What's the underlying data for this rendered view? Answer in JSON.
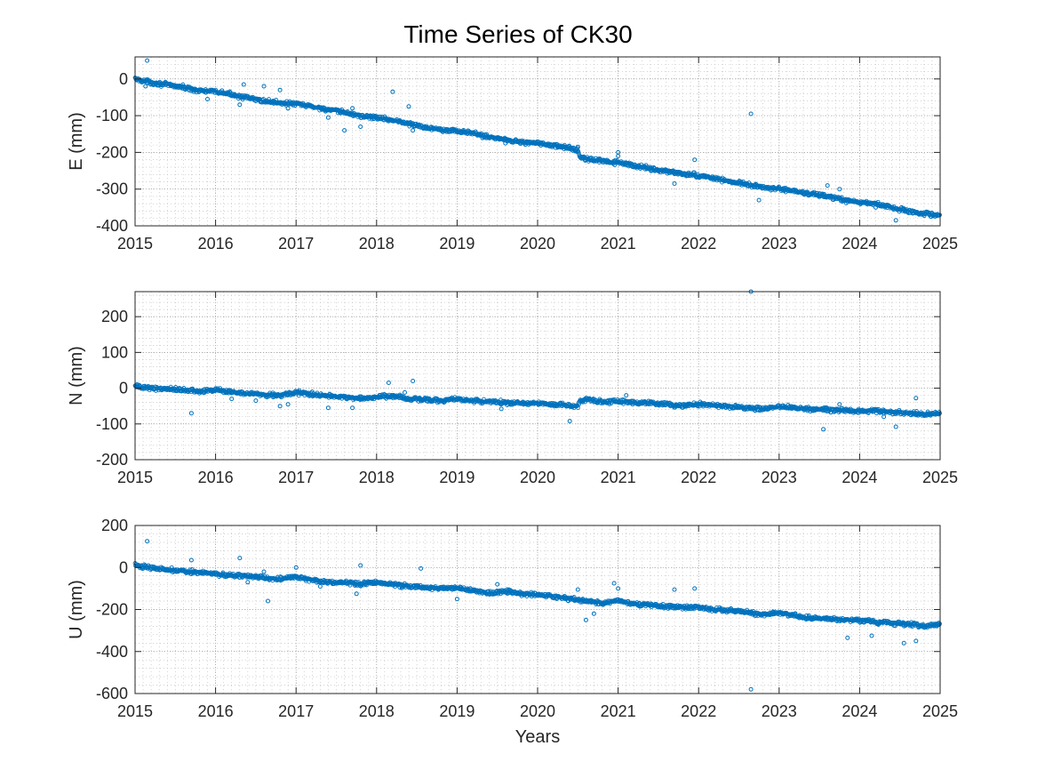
{
  "figure": {
    "title": "Time Series of CK30",
    "xlabel": "Years"
  },
  "colors": {
    "marker": "#0072BD",
    "grid": "#b8b8b8",
    "axis": "#262626",
    "background": "#ffffff"
  },
  "chart_data": [
    {
      "type": "scatter",
      "marker": "open-circle",
      "ylabel": "E (mm)",
      "xlim": [
        2015,
        2025
      ],
      "ylim": [
        -400,
        60
      ],
      "xticks": [
        2015,
        2016,
        2017,
        2018,
        2019,
        2020,
        2021,
        2022,
        2023,
        2024,
        2025
      ],
      "yticks": [
        -400,
        -300,
        -200,
        -100,
        0
      ],
      "grid": true,
      "minor_grid": true,
      "show_xtick_labels": true,
      "show_xlabel": false,
      "x": [
        2015.0,
        2015.2,
        2015.4,
        2015.6,
        2015.8,
        2016.0,
        2016.2,
        2016.4,
        2016.6,
        2016.8,
        2017.0,
        2017.2,
        2017.4,
        2017.6,
        2017.8,
        2018.0,
        2018.2,
        2018.4,
        2018.6,
        2018.8,
        2019.0,
        2019.2,
        2019.4,
        2019.6,
        2019.8,
        2020.0,
        2020.2,
        2020.4,
        2020.5,
        2020.52,
        2020.6,
        2020.8,
        2021.0,
        2021.2,
        2021.4,
        2021.6,
        2021.8,
        2022.0,
        2022.2,
        2022.4,
        2022.6,
        2022.8,
        2023.0,
        2023.2,
        2023.4,
        2023.6,
        2023.8,
        2024.0,
        2024.2,
        2024.4,
        2024.6,
        2024.8,
        2025.0
      ],
      "y": [
        0,
        -10,
        -16,
        -23,
        -32,
        -35,
        -42,
        -52,
        -60,
        -65,
        -68,
        -75,
        -84,
        -91,
        -101,
        -105,
        -112,
        -122,
        -132,
        -137,
        -142,
        -148,
        -158,
        -165,
        -172,
        -175,
        -182,
        -188,
        -195,
        -212,
        -218,
        -224,
        -228,
        -236,
        -244,
        -252,
        -258,
        -264,
        -270,
        -280,
        -288,
        -295,
        -300,
        -306,
        -313,
        -320,
        -330,
        -336,
        -340,
        -350,
        -360,
        -366,
        -372
      ],
      "outliers": {
        "x": [
          2015.15,
          2015.13,
          2015.9,
          2016.3,
          2016.35,
          2016.6,
          2016.8,
          2016.9,
          2017.4,
          2017.6,
          2017.7,
          2017.8,
          2018.2,
          2018.4,
          2018.45,
          2019.6,
          2020.5,
          2021.0,
          2021.0,
          2021.7,
          2021.95,
          2022.65,
          2022.75,
          2023.6,
          2023.75,
          2024.2,
          2024.45
        ],
        "y": [
          50,
          -20,
          -55,
          -70,
          -15,
          -20,
          -30,
          -80,
          -105,
          -140,
          -80,
          -130,
          -35,
          -75,
          -140,
          -175,
          -185,
          -200,
          -210,
          -285,
          -220,
          -95,
          -330,
          -290,
          -300,
          -350,
          -385
        ]
      }
    },
    {
      "type": "scatter",
      "marker": "open-circle",
      "ylabel": "N (mm)",
      "xlim": [
        2015,
        2025
      ],
      "ylim": [
        -200,
        270
      ],
      "xticks": [
        2015,
        2016,
        2017,
        2018,
        2019,
        2020,
        2021,
        2022,
        2023,
        2024,
        2025
      ],
      "yticks": [
        -200,
        -100,
        0,
        100,
        200
      ],
      "grid": true,
      "minor_grid": true,
      "show_xtick_labels": true,
      "show_xlabel": false,
      "x": [
        2015.0,
        2015.2,
        2015.4,
        2015.6,
        2015.8,
        2016.0,
        2016.2,
        2016.4,
        2016.6,
        2016.8,
        2017.0,
        2017.2,
        2017.4,
        2017.6,
        2017.8,
        2018.0,
        2018.2,
        2018.4,
        2018.6,
        2018.8,
        2019.0,
        2019.2,
        2019.4,
        2019.6,
        2019.8,
        2020.0,
        2020.2,
        2020.4,
        2020.5,
        2020.52,
        2020.6,
        2020.8,
        2021.0,
        2021.2,
        2021.4,
        2021.6,
        2021.8,
        2022.0,
        2022.2,
        2022.4,
        2022.6,
        2022.8,
        2023.0,
        2023.2,
        2023.4,
        2023.6,
        2023.8,
        2024.0,
        2024.2,
        2024.4,
        2024.6,
        2024.8,
        2025.0
      ],
      "y": [
        5,
        0,
        -2,
        -4,
        -10,
        -5,
        -10,
        -14,
        -18,
        -20,
        -12,
        -18,
        -22,
        -25,
        -28,
        -26,
        -22,
        -30,
        -32,
        -35,
        -30,
        -35,
        -38,
        -40,
        -42,
        -42,
        -45,
        -48,
        -50,
        -35,
        -32,
        -38,
        -36,
        -40,
        -42,
        -45,
        -50,
        -45,
        -48,
        -52,
        -55,
        -58,
        -52,
        -55,
        -60,
        -60,
        -62,
        -65,
        -62,
        -68,
        -70,
        -72,
        -72
      ],
      "outliers": {
        "x": [
          2015.7,
          2016.2,
          2016.5,
          2016.8,
          2016.9,
          2017.2,
          2017.4,
          2017.7,
          2018.15,
          2018.35,
          2018.45,
          2019.55,
          2020.4,
          2020.6,
          2021.1,
          2022.65,
          2023.55,
          2023.75,
          2024.3,
          2024.45,
          2024.7
        ],
        "y": [
          -70,
          -30,
          -35,
          -50,
          -45,
          -10,
          -55,
          -55,
          15,
          -12,
          20,
          -58,
          -92,
          -28,
          -20,
          270,
          -115,
          -45,
          -80,
          -108,
          -28
        ]
      }
    },
    {
      "type": "scatter",
      "marker": "open-circle",
      "ylabel": "U (mm)",
      "xlim": [
        2015,
        2025
      ],
      "ylim": [
        -600,
        200
      ],
      "xticks": [
        2015,
        2016,
        2017,
        2018,
        2019,
        2020,
        2021,
        2022,
        2023,
        2024,
        2025
      ],
      "yticks": [
        -600,
        -400,
        -200,
        0,
        200
      ],
      "grid": true,
      "minor_grid": true,
      "show_xtick_labels": true,
      "show_xlabel": true,
      "x": [
        2015.0,
        2015.2,
        2015.4,
        2015.6,
        2015.8,
        2016.0,
        2016.2,
        2016.4,
        2016.6,
        2016.8,
        2017.0,
        2017.2,
        2017.4,
        2017.6,
        2017.8,
        2018.0,
        2018.2,
        2018.4,
        2018.6,
        2018.8,
        2019.0,
        2019.2,
        2019.4,
        2019.6,
        2019.8,
        2020.0,
        2020.2,
        2020.4,
        2020.6,
        2020.8,
        2021.0,
        2021.2,
        2021.4,
        2021.6,
        2021.8,
        2022.0,
        2022.2,
        2022.4,
        2022.6,
        2022.8,
        2023.0,
        2023.2,
        2023.4,
        2023.6,
        2023.8,
        2024.0,
        2024.2,
        2024.4,
        2024.6,
        2024.8,
        2025.0
      ],
      "y": [
        10,
        0,
        -10,
        -15,
        -25,
        -30,
        -40,
        -40,
        -50,
        -55,
        -45,
        -60,
        -70,
        -70,
        -80,
        -70,
        -80,
        -90,
        -95,
        -100,
        -95,
        -110,
        -120,
        -115,
        -125,
        -130,
        -140,
        -150,
        -160,
        -170,
        -155,
        -175,
        -180,
        -185,
        -190,
        -190,
        -200,
        -205,
        -215,
        -225,
        -215,
        -230,
        -240,
        -245,
        -250,
        -250,
        -260,
        -265,
        -270,
        -280,
        -270
      ],
      "outliers": {
        "x": [
          2015.15,
          2015.7,
          2016.3,
          2016.4,
          2016.6,
          2016.65,
          2017.0,
          2017.3,
          2017.75,
          2017.8,
          2018.3,
          2018.55,
          2019.0,
          2019.5,
          2020.5,
          2020.6,
          2020.7,
          2020.95,
          2021.0,
          2021.7,
          2021.95,
          2022.65,
          2023.85,
          2024.15,
          2024.55,
          2024.7
        ],
        "y": [
          125,
          35,
          45,
          -70,
          -20,
          -160,
          0,
          -90,
          -125,
          10,
          -80,
          -5,
          -150,
          -80,
          -105,
          -250,
          -220,
          -75,
          -100,
          -105,
          -100,
          -580,
          -335,
          -325,
          -360,
          -350
        ]
      }
    }
  ]
}
